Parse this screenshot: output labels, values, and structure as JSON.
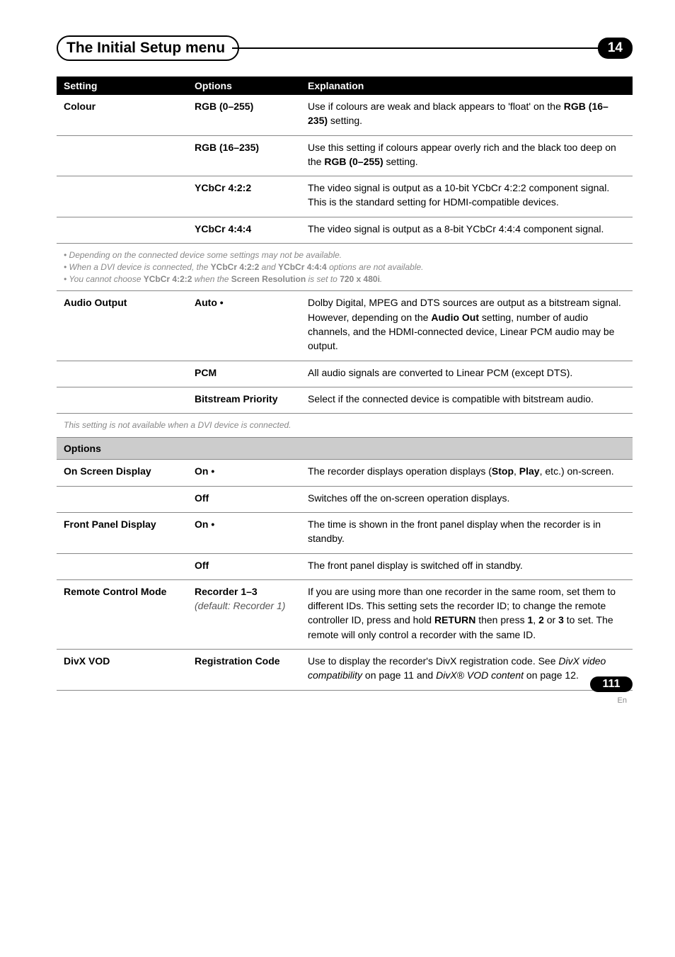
{
  "header": {
    "title": "The Initial Setup menu",
    "chapter": "14"
  },
  "table": {
    "headers": [
      "Setting",
      "Options",
      "Explanation"
    ],
    "rows": [
      {
        "setting": "Colour",
        "option": "RGB (0–255)",
        "explain_html": "Use if colours are weak and black appears to 'float' on the <b>RGB (16–235)</b> setting."
      },
      {
        "setting": "",
        "option": "RGB (16–235)",
        "explain_html": "Use this setting if colours appear overly rich and the black too deep on the <b>RGB (0–255)</b> setting."
      },
      {
        "setting": "",
        "option": "YCbCr 4:2:2",
        "explain_html": "The video signal is output as a 10-bit YCbCr 4:2:2 component signal. This is the standard setting for HDMI-compatible devices."
      },
      {
        "setting": "",
        "option": "YCbCr 4:4:4",
        "explain_html": "The video signal is output as a 8-bit YCbCr 4:4:4 component signal."
      }
    ],
    "note1_html": "<i>• Depending on the connected device some settings may not be available.<br>• When a DVI device is connected, the </i><b>YCbCr 4:2:2</b><i> and </i><b>YCbCr 4:4:4</b><i> options are not available.<br>• You cannot choose </i><b>YCbCr 4:2:2</b><i> when the </i><b>Screen Resolution</b><i> is set to </i><b>720 x 480i</b><i>.</i>",
    "rows2": [
      {
        "setting": "Audio Output",
        "option": "Auto •",
        "explain_html": "Dolby Digital, MPEG and DTS sources are output as a bitstream signal. However, depending on the <b>Audio Out</b> setting, number of audio channels, and the HDMI-connected device, Linear PCM audio may be output."
      },
      {
        "setting": "",
        "option": "PCM",
        "explain_html": "All audio signals are converted to Linear PCM (except DTS)."
      },
      {
        "setting": "",
        "option": "Bitstream Priority",
        "explain_html": "Select if the connected device is compatible with bitstream audio."
      }
    ],
    "note2_html": "<i>This setting is not available when a DVI device is connected.</i>",
    "section2": "Options",
    "rows3": [
      {
        "setting": "On Screen Display",
        "option": "On •",
        "explain_html": "The recorder displays operation displays (<b>Stop</b>, <b>Play</b>, etc.) on-screen."
      },
      {
        "setting": "",
        "option": "Off",
        "explain_html": "Switches off the on-screen operation displays."
      },
      {
        "setting": "Front Panel Display",
        "option": "On •",
        "explain_html": "The time is shown in the front panel display when the recorder is in standby."
      },
      {
        "setting": "",
        "option": "Off",
        "explain_html": "The front panel display is switched off in standby."
      },
      {
        "setting": "Remote Control Mode",
        "option_html": "<b>Recorder 1–3</b><br><span class='italic-default'>(default: Recorder 1)</span>",
        "explain_html": "If you are using more than one recorder in the same room, set them to different IDs. This setting sets the recorder ID; to change the remote controller ID, press and hold <b>RETURN</b> then press <b>1</b>, <b>2</b> or <b>3</b> to set. The remote will only control a recorder with the same ID."
      },
      {
        "setting": "DivX VOD",
        "option": "Registration Code",
        "explain_html": "Use to display the recorder's DivX registration code. See <i>DivX video compatibility</i> on page 11 and <i>DivX® VOD content</i> on page 12."
      }
    ]
  },
  "footer": {
    "page": "111",
    "lang": "En"
  }
}
